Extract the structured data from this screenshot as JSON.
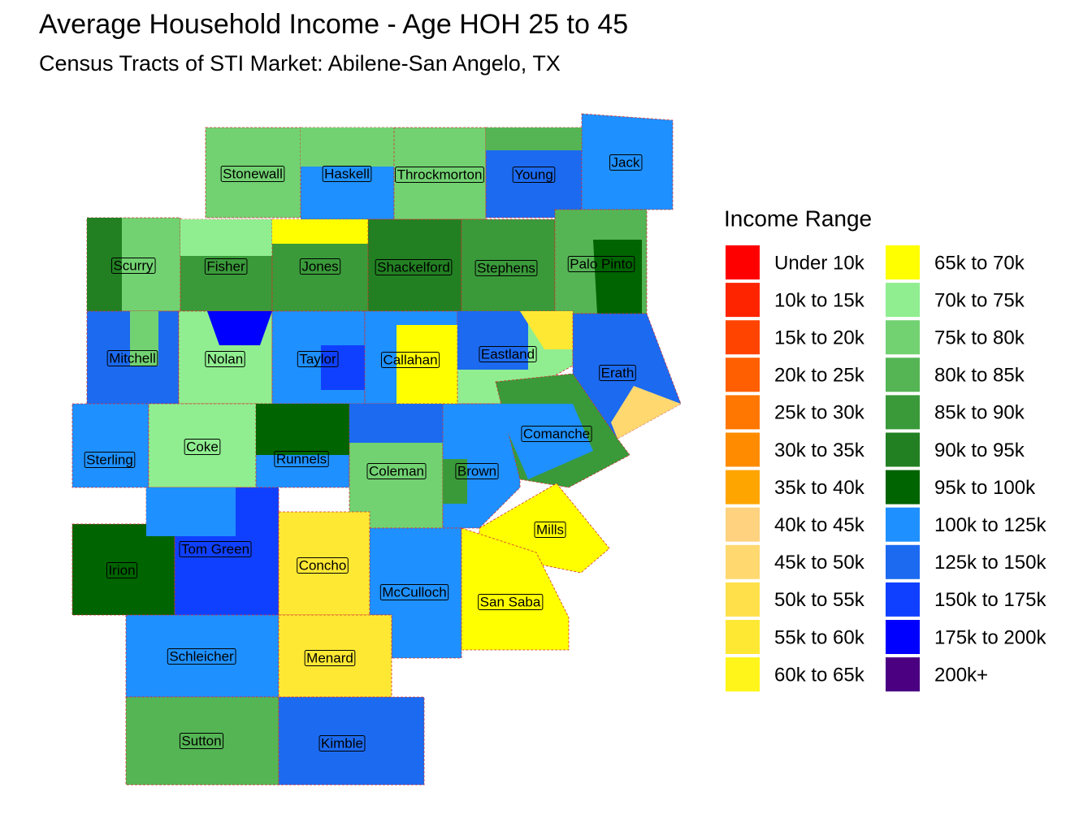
{
  "title": "Average Household Income - Age HOH 25 to 45",
  "subtitle": "Census Tracts of STI Market: Abilene-San Angelo, TX",
  "legend": {
    "title": "Income Range",
    "items": [
      {
        "label": "Under 10k",
        "color": "#ff0000"
      },
      {
        "label": "10k to 15k",
        "color": "#ff2400"
      },
      {
        "label": "15k to 20k",
        "color": "#ff4400"
      },
      {
        "label": "20k to 25k",
        "color": "#ff5f00"
      },
      {
        "label": "25k to 30k",
        "color": "#ff7700"
      },
      {
        "label": "30k to 35k",
        "color": "#ff8c00"
      },
      {
        "label": "35k to 40k",
        "color": "#ffa500"
      },
      {
        "label": "40k to 45k",
        "color": "#ffd27f"
      },
      {
        "label": "45k to 50k",
        "color": "#ffd870"
      },
      {
        "label": "50k to 55k",
        "color": "#ffe04a"
      },
      {
        "label": "55k to 60k",
        "color": "#ffe834"
      },
      {
        "label": "60k to 65k",
        "color": "#fff51a"
      },
      {
        "label": "65k to 70k",
        "color": "#ffff00"
      },
      {
        "label": "70k to 75k",
        "color": "#90ee90"
      },
      {
        "label": "75k to 80k",
        "color": "#72d272"
      },
      {
        "label": "80k to 85k",
        "color": "#55b555"
      },
      {
        "label": "85k to 90k",
        "color": "#3a9a3a"
      },
      {
        "label": "90k to 95k",
        "color": "#228022"
      },
      {
        "label": "95k to 100k",
        "color": "#006400"
      },
      {
        "label": "100k to 125k",
        "color": "#1e90ff"
      },
      {
        "label": "125k to 150k",
        "color": "#1c6af0"
      },
      {
        "label": "150k to 175k",
        "color": "#1040ff"
      },
      {
        "label": "175k to 200k",
        "color": "#0000ff"
      },
      {
        "label": "200k+",
        "color": "#4b0082"
      }
    ]
  },
  "counties": [
    "Stonewall",
    "Haskell",
    "Throckmorton",
    "Young",
    "Jack",
    "Scurry",
    "Fisher",
    "Jones",
    "Shackelford",
    "Stephens",
    "Palo Pinto",
    "Mitchell",
    "Nolan",
    "Taylor",
    "Callahan",
    "Eastland",
    "Erath",
    "Sterling",
    "Coke",
    "Runnels",
    "Coleman",
    "Brown",
    "Comanche",
    "Irion",
    "Tom Green",
    "Concho",
    "McCulloch",
    "Mills",
    "San Saba",
    "Schleicher",
    "Menard",
    "Sutton",
    "Kimble"
  ]
}
